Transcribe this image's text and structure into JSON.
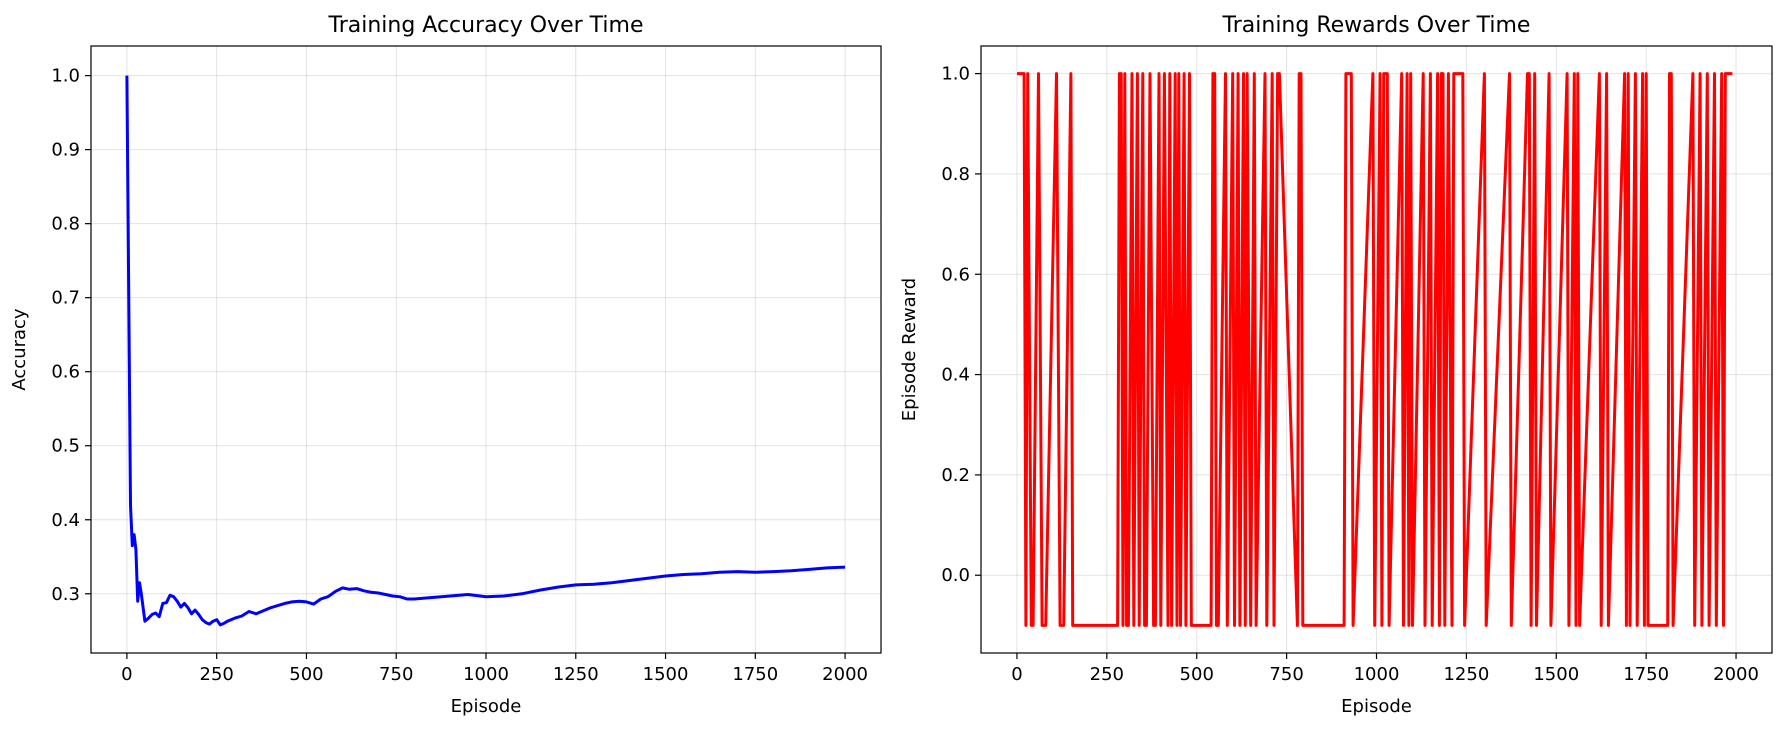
{
  "chart_data": [
    {
      "type": "line",
      "title": "Training Accuracy Over Time",
      "xlabel": "Episode",
      "ylabel": "Accuracy",
      "xlim": [
        -100,
        2100
      ],
      "ylim": [
        0.22,
        1.04
      ],
      "xticks": [
        0,
        250,
        500,
        750,
        1000,
        1250,
        1500,
        1750,
        2000
      ],
      "xtick_labels": [
        "0",
        "250",
        "500",
        "750",
        "1000",
        "1250",
        "1500",
        "1750",
        "2000"
      ],
      "yticks": [
        0.3,
        0.4,
        0.5,
        0.6,
        0.7,
        0.8,
        0.9,
        1.0
      ],
      "ytick_labels": [
        "0.3",
        "0.4",
        "0.5",
        "0.6",
        "0.7",
        "0.8",
        "0.9",
        "1.0"
      ],
      "grid": true,
      "series": [
        {
          "color": "#0000ff",
          "x": [
            0,
            10,
            15,
            20,
            25,
            30,
            35,
            40,
            50,
            60,
            70,
            80,
            90,
            100,
            110,
            120,
            130,
            140,
            150,
            160,
            170,
            180,
            190,
            200,
            210,
            220,
            230,
            240,
            250,
            260,
            270,
            280,
            290,
            300,
            320,
            340,
            360,
            380,
            400,
            420,
            440,
            460,
            480,
            500,
            520,
            540,
            560,
            580,
            600,
            620,
            640,
            660,
            680,
            700,
            720,
            740,
            760,
            780,
            800,
            850,
            900,
            950,
            1000,
            1050,
            1100,
            1150,
            1200,
            1250,
            1300,
            1350,
            1400,
            1450,
            1500,
            1550,
            1600,
            1650,
            1700,
            1750,
            1800,
            1850,
            1900,
            1950,
            2000
          ],
          "y": [
            1.0,
            0.42,
            0.365,
            0.38,
            0.36,
            0.29,
            0.315,
            0.3,
            0.263,
            0.267,
            0.272,
            0.274,
            0.269,
            0.287,
            0.288,
            0.298,
            0.296,
            0.29,
            0.282,
            0.287,
            0.281,
            0.273,
            0.278,
            0.272,
            0.265,
            0.261,
            0.259,
            0.263,
            0.265,
            0.258,
            0.26,
            0.263,
            0.265,
            0.267,
            0.27,
            0.276,
            0.273,
            0.277,
            0.281,
            0.284,
            0.287,
            0.289,
            0.29,
            0.289,
            0.286,
            0.293,
            0.296,
            0.303,
            0.308,
            0.306,
            0.307,
            0.304,
            0.302,
            0.301,
            0.299,
            0.297,
            0.296,
            0.293,
            0.293,
            0.295,
            0.297,
            0.299,
            0.296,
            0.297,
            0.3,
            0.305,
            0.309,
            0.312,
            0.313,
            0.315,
            0.318,
            0.321,
            0.324,
            0.326,
            0.327,
            0.329,
            0.33,
            0.329,
            0.33,
            0.331,
            0.333,
            0.335,
            0.336
          ]
        }
      ]
    },
    {
      "type": "line",
      "title": "Training Rewards Over Time",
      "xlabel": "Episode",
      "ylabel": "Episode Reward",
      "xlim": [
        -100,
        2100
      ],
      "ylim": [
        -0.155,
        1.055
      ],
      "xticks": [
        0,
        250,
        500,
        750,
        1000,
        1250,
        1500,
        1750,
        2000
      ],
      "xtick_labels": [
        "0",
        "250",
        "500",
        "750",
        "1000",
        "1250",
        "1500",
        "1750",
        "2000"
      ],
      "yticks": [
        0.0,
        0.2,
        0.4,
        0.6,
        0.8,
        1.0
      ],
      "ytick_labels": [
        "0.0",
        "0.2",
        "0.4",
        "0.6",
        "0.8",
        "1.0"
      ],
      "grid": true,
      "series": [
        {
          "color": "#ff0000",
          "x": [
            0,
            20,
            25,
            30,
            40,
            45,
            60,
            70,
            80,
            110,
            120,
            130,
            150,
            155,
            160,
            280,
            285,
            290,
            295,
            300,
            305,
            310,
            320,
            325,
            335,
            340,
            350,
            355,
            360,
            370,
            380,
            385,
            395,
            400,
            410,
            420,
            425,
            430,
            440,
            445,
            450,
            455,
            465,
            470,
            480,
            485,
            495,
            540,
            545,
            550,
            555,
            560,
            580,
            585,
            600,
            605,
            615,
            620,
            630,
            635,
            640,
            650,
            660,
            665,
            690,
            695,
            710,
            715,
            725,
            730,
            780,
            785,
            790,
            795,
            800,
            910,
            915,
            920,
            930,
            935,
            990,
            995,
            1010,
            1015,
            1020,
            1030,
            1035,
            1070,
            1075,
            1085,
            1090,
            1095,
            1100,
            1130,
            1135,
            1150,
            1155,
            1170,
            1175,
            1180,
            1185,
            1190,
            1200,
            1210,
            1215,
            1220,
            1240,
            1245,
            1300,
            1305,
            1370,
            1375,
            1420,
            1425,
            1430,
            1440,
            1445,
            1480,
            1485,
            1530,
            1535,
            1550,
            1555,
            1560,
            1565,
            1620,
            1625,
            1640,
            1645,
            1690,
            1695,
            1700,
            1705,
            1720,
            1725,
            1740,
            1745,
            1750,
            1755,
            1810,
            1815,
            1820,
            1825,
            1880,
            1885,
            1900,
            1905,
            1920,
            1925,
            1940,
            1945,
            1960,
            1965,
            1970,
            1975,
            1990
          ],
          "y": [
            1.0,
            1.0,
            -0.1,
            1.0,
            -0.1,
            -0.1,
            1.0,
            -0.1,
            -0.1,
            1.0,
            -0.1,
            -0.1,
            1.0,
            -0.1,
            -0.1,
            -0.1,
            1.0,
            1.0,
            -0.1,
            1.0,
            -0.1,
            -0.1,
            1.0,
            -0.1,
            1.0,
            -0.1,
            1.0,
            -0.1,
            -0.1,
            1.0,
            -0.1,
            -0.1,
            1.0,
            -0.1,
            1.0,
            -0.1,
            1.0,
            -0.1,
            1.0,
            -0.1,
            1.0,
            -0.1,
            1.0,
            -0.1,
            1.0,
            -0.1,
            -0.1,
            -0.1,
            1.0,
            1.0,
            -0.1,
            -0.1,
            1.0,
            -0.1,
            1.0,
            -0.1,
            1.0,
            -0.1,
            1.0,
            -0.1,
            1.0,
            -0.1,
            1.0,
            -0.1,
            1.0,
            -0.1,
            1.0,
            -0.1,
            1.0,
            1.0,
            -0.1,
            1.0,
            1.0,
            -0.1,
            -0.1,
            -0.1,
            1.0,
            1.0,
            1.0,
            -0.1,
            1.0,
            -0.1,
            1.0,
            -0.1,
            1.0,
            1.0,
            -0.1,
            1.0,
            -0.1,
            1.0,
            -0.1,
            1.0,
            -0.1,
            1.0,
            -0.1,
            1.0,
            -0.1,
            1.0,
            -0.1,
            1.0,
            1.0,
            -0.1,
            1.0,
            -0.1,
            1.0,
            1.0,
            1.0,
            -0.1,
            1.0,
            -0.1,
            1.0,
            -0.1,
            1.0,
            1.0,
            -0.1,
            1.0,
            -0.1,
            1.0,
            -0.1,
            1.0,
            -0.1,
            1.0,
            -0.1,
            1.0,
            -0.1,
            1.0,
            -0.1,
            1.0,
            -0.1,
            1.0,
            -0.1,
            1.0,
            -0.1,
            1.0,
            -0.1,
            1.0,
            -0.1,
            1.0,
            -0.1,
            -0.1,
            1.0,
            1.0,
            -0.1,
            1.0,
            -0.1,
            1.0,
            -0.1,
            1.0,
            -0.1,
            1.0,
            -0.1,
            1.0,
            -0.1,
            1.0,
            1.0,
            1.0
          ]
        }
      ]
    }
  ]
}
